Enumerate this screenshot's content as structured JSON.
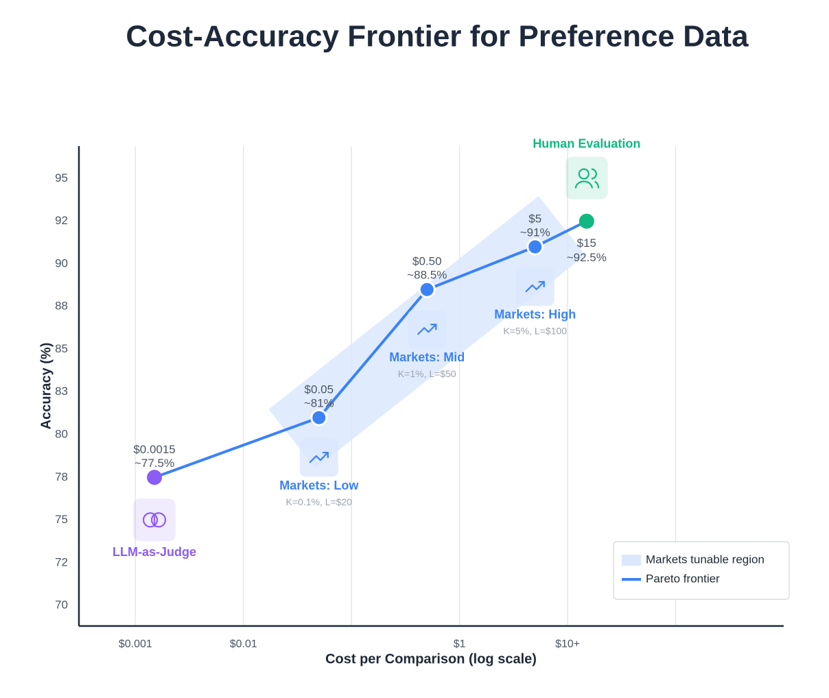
{
  "chart_data": {
    "type": "line",
    "title": "Cost-Accuracy Frontier for Preference Data",
    "x_label": "Cost per Comparison (log scale)",
    "y_label": "Accuracy (%)",
    "log_x": true,
    "xlim": [
      0.0003,
      1000
    ],
    "xticks": [
      {
        "value": 0.001,
        "label": "$0.001"
      },
      {
        "value": 0.01,
        "label": "$0.01"
      },
      {
        "value": 0.1,
        "label": null
      },
      {
        "value": 1,
        "label": "$1"
      },
      {
        "value": 10,
        "label": "$10+"
      },
      {
        "value": 100,
        "label": null
      }
    ],
    "ylim": [
      68.8,
      96.9
    ],
    "yticks": [
      70,
      {
        "value": 72.5,
        "label": "72"
      },
      75,
      {
        "value": 77.5,
        "label": "78"
      },
      80,
      {
        "value": 82.5,
        "label": "83"
      },
      85,
      {
        "value": 87.5,
        "label": "88"
      },
      90,
      {
        "value": 92.5,
        "label": "92"
      },
      95
    ],
    "grid": "x",
    "legend_position": "lower right",
    "region": {
      "name": "Markets tunable region",
      "color": "#dbe7fd"
    },
    "series": [
      {
        "name": "Pareto frontier",
        "color": "#3b82f6",
        "x": [
          0.0015,
          0.05,
          0.5,
          5,
          15
        ],
        "x_labels": [
          "$0.0015",
          "$0.05",
          "$0.50",
          "$5",
          "$15"
        ],
        "values": [
          77.5,
          81,
          88.5,
          91,
          92.5
        ],
        "value_labels": [
          "~77.5%",
          "~81%",
          "~88.5%",
          "~91%",
          "~92.5%"
        ],
        "point_colors": [
          "#8b5cf6",
          "#3b82f6",
          "#3b82f6",
          "#3b82f6",
          "#10b981"
        ]
      }
    ],
    "point_annotations": [
      {
        "title": "LLM-as-Judge"
      },
      {
        "title": "Markets: Low",
        "detail": "K=0.1%, L=$20"
      },
      {
        "title": "Markets: Mid",
        "detail": "K=1%, L=$50"
      },
      {
        "title": "Markets: High",
        "detail": "K=5%, L=$100"
      },
      {
        "title": "Human Evaluation"
      }
    ]
  }
}
